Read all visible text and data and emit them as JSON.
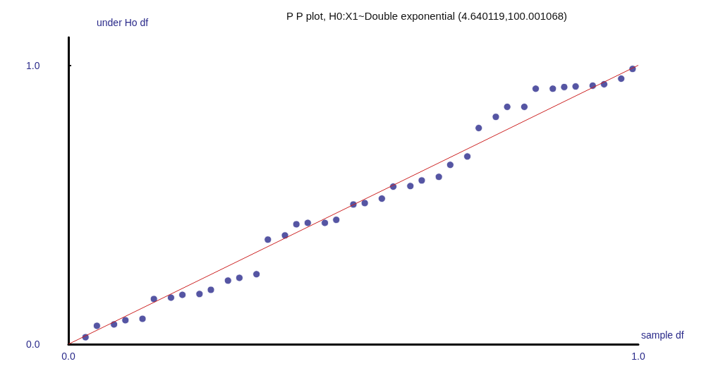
{
  "chart_data": {
    "type": "scatter",
    "title": "P P plot, H0:X1~Double exponential (4.640119,100.001068)",
    "xlabel": "sample df",
    "ylabel": "under Ho df",
    "series": [
      {
        "color": "#2b2b8c",
        "marker": "circle",
        "x": [
          0.03,
          0.05,
          0.08,
          0.1,
          0.13,
          0.15,
          0.18,
          0.2,
          0.23,
          0.25,
          0.28,
          0.3,
          0.33,
          0.35,
          0.38,
          0.4,
          0.42,
          0.45,
          0.47,
          0.5,
          0.52,
          0.55,
          0.57,
          0.6,
          0.62,
          0.65,
          0.67,
          0.7,
          0.72,
          0.75,
          0.77,
          0.8,
          0.82,
          0.85,
          0.87,
          0.89,
          0.92,
          0.94,
          0.97,
          0.99
        ],
        "values": [
          0.025,
          0.066,
          0.071,
          0.086,
          0.091,
          0.162,
          0.167,
          0.177,
          0.18,
          0.195,
          0.228,
          0.238,
          0.251,
          0.375,
          0.39,
          0.43,
          0.435,
          0.435,
          0.446,
          0.501,
          0.506,
          0.522,
          0.565,
          0.567,
          0.587,
          0.6,
          0.643,
          0.673,
          0.775,
          0.815,
          0.851,
          0.851,
          0.916,
          0.916,
          0.922,
          0.924,
          0.927,
          0.932,
          0.952,
          0.987
        ]
      },
      {
        "type": "line",
        "color": "#cc2222",
        "marker": "none",
        "x": [
          0,
          1
        ],
        "values": [
          0,
          1
        ]
      }
    ],
    "xlim": [
      0,
      1
    ],
    "ylim": [
      0,
      1.1
    ],
    "xticks": [
      {
        "value": 0,
        "label": "0.0"
      },
      {
        "value": 1,
        "label": "1.0"
      }
    ],
    "yticks": [
      {
        "value": 0,
        "label": "0.0"
      },
      {
        "value": 1,
        "label": "1.0"
      }
    ],
    "grid": false
  }
}
